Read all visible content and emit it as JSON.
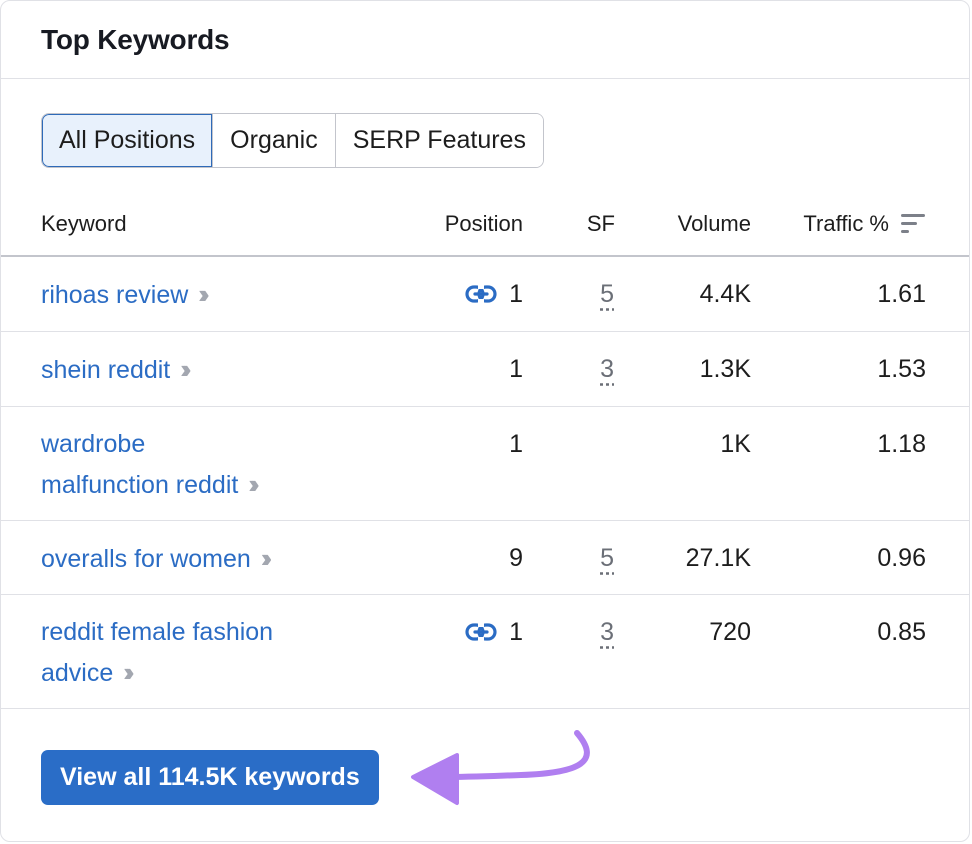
{
  "card": {
    "title": "Top Keywords"
  },
  "tabs": [
    {
      "label": "All Positions",
      "active": true
    },
    {
      "label": "Organic",
      "active": false
    },
    {
      "label": "SERP Features",
      "active": false
    }
  ],
  "columns": {
    "keyword": "Keyword",
    "position": "Position",
    "sf": "SF",
    "volume": "Volume",
    "traffic": "Traffic %"
  },
  "rows": [
    {
      "keyword": "rihoas review",
      "link_icon": true,
      "position": "1",
      "sf": "5",
      "volume": "4.4K",
      "traffic": "1.61"
    },
    {
      "keyword": "shein reddit",
      "link_icon": false,
      "position": "1",
      "sf": "3",
      "volume": "1.3K",
      "traffic": "1.53"
    },
    {
      "keyword_lines": [
        "wardrobe",
        "malfunction reddit"
      ],
      "link_icon": false,
      "position": "1",
      "sf": "",
      "volume": "1K",
      "traffic": "1.18"
    },
    {
      "keyword": "overalls for women",
      "link_icon": false,
      "position": "9",
      "sf": "5",
      "volume": "27.1K",
      "traffic": "0.96"
    },
    {
      "keyword_lines": [
        "reddit female fashion",
        "advice"
      ],
      "link_icon": true,
      "position": "1",
      "sf": "3",
      "volume": "720",
      "traffic": "0.85"
    }
  ],
  "footer": {
    "view_all_label": "View all 114.5K keywords"
  },
  "colors": {
    "link": "#2b6cc4",
    "button": "#2a6dc7",
    "annotation_arrow": "#b07ff0"
  },
  "icons": {
    "row_link": "link-icon",
    "row_expand": "double-chevron-right-icon",
    "sort": "sort-icon"
  }
}
